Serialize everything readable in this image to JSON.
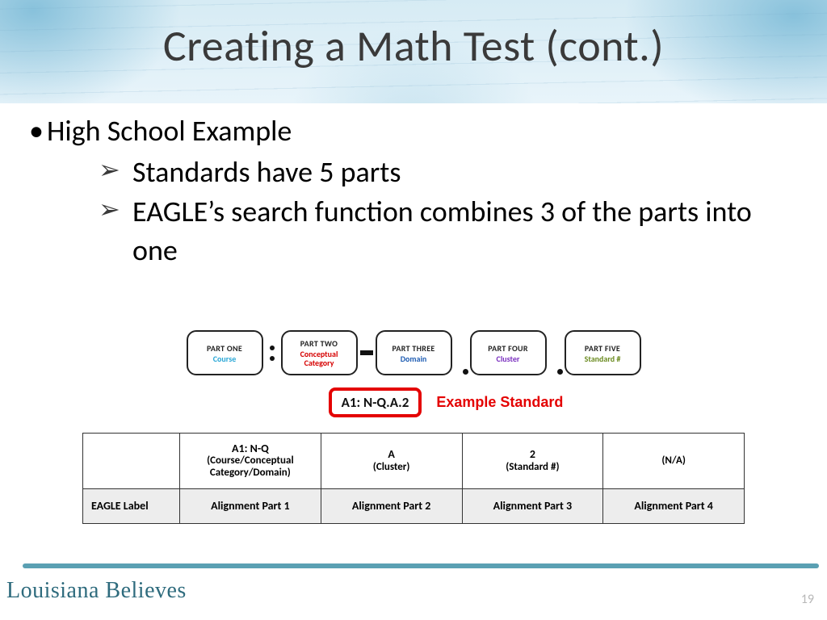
{
  "colors": {
    "title_text": "#3a3a3a",
    "watercolor_light": "#d6ebf4",
    "watercolor_dark": "#7abad7",
    "accent_red": "#e40000",
    "footer_teal": "#5aa0b3",
    "grid_border": "#333333",
    "shaded_row": "#ededed",
    "page_number": "#b8b8b8"
  },
  "title": "Creating a Math Test (cont.)",
  "bullets": {
    "top": "High School Example",
    "subs": [
      "Standards have 5 parts",
      "EAGLE’s search function combines 3 of the parts into one"
    ]
  },
  "parts": [
    {
      "title": "PART ONE",
      "sub": "Course",
      "color": "#2aa7d6"
    },
    {
      "title": "PART TWO",
      "sub": "Conceptual Category",
      "color": "#d60000"
    },
    {
      "title": "PART THREE",
      "sub": "Domain",
      "color": "#1f5db3"
    },
    {
      "title": "PART FOUR",
      "sub": "Cluster",
      "color": "#7a2fbf"
    },
    {
      "title": "PART FIVE",
      "sub": "Standard #",
      "color": "#6a8a1f"
    }
  ],
  "separators": [
    "colon",
    "dash",
    "dot",
    "dot"
  ],
  "example": {
    "code": "A1: N-Q.A.2",
    "label": "Example Standard"
  },
  "table": {
    "label_col_width": 120,
    "columns": [
      {
        "top_line1": "A1: N-Q",
        "top_line2": "(Course/Conceptual Category/Domain)",
        "bottom": "Alignment Part 1"
      },
      {
        "top_line1": "A",
        "top_line2": "(Cluster)",
        "bottom": "Alignment Part 2"
      },
      {
        "top_line1": "2",
        "top_line2": "(Standard #)",
        "bottom": "Alignment Part 3"
      },
      {
        "top_line1": "",
        "top_line2": "(N/A)",
        "bottom": "Alignment Part 4"
      }
    ],
    "row_label": "EAGLE Label"
  },
  "footer": {
    "logo": "Louisiana Believes",
    "page": "19"
  }
}
